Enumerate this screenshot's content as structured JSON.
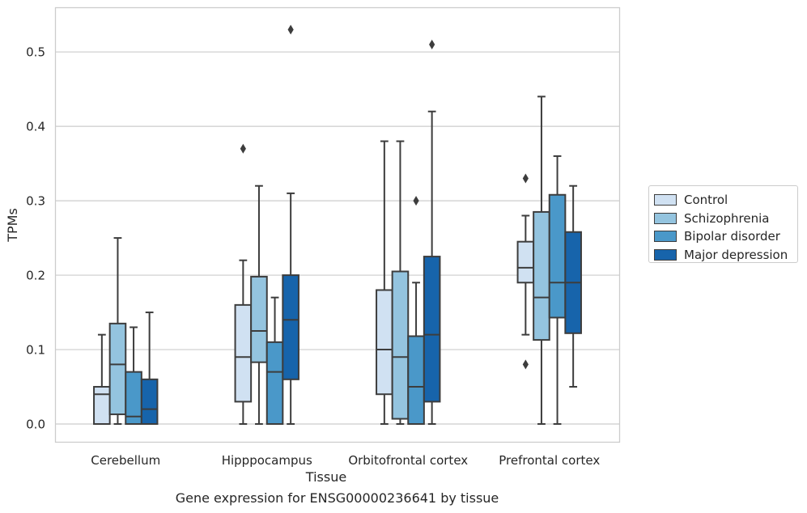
{
  "caption": "Gene expression for ENSG00000236641 by tissue",
  "chart_data": {
    "type": "boxplot",
    "xlabel": "Tissue",
    "ylabel": "TPMs",
    "ylim": [
      -0.025,
      0.56
    ],
    "yticks": [
      0.0,
      0.1,
      0.2,
      0.3,
      0.4,
      0.5
    ],
    "ytick_labels": [
      "0.0",
      "0.1",
      "0.2",
      "0.3",
      "0.4",
      "0.5"
    ],
    "grid": true,
    "legend_placement": "right, outside plot",
    "categories": [
      "Cerebellum",
      "Hipppocampus",
      "Orbitofrontal cortex",
      "Prefrontal cortex"
    ],
    "series": [
      {
        "name": "Control",
        "color": "#d0e1f2",
        "boxes": [
          {
            "whislo": 0.0,
            "q1": 0.0,
            "med": 0.04,
            "q3": 0.05,
            "whishi": 0.12,
            "fliers": []
          },
          {
            "whislo": 0.0,
            "q1": 0.03,
            "med": 0.09,
            "q3": 0.16,
            "whishi": 0.22,
            "fliers": [
              0.37
            ]
          },
          {
            "whislo": 0.0,
            "q1": 0.04,
            "med": 0.1,
            "q3": 0.18,
            "whishi": 0.38,
            "fliers": []
          },
          {
            "whislo": 0.12,
            "q1": 0.19,
            "med": 0.21,
            "q3": 0.245,
            "whishi": 0.28,
            "fliers": [
              0.33,
              0.08
            ]
          }
        ]
      },
      {
        "name": "Schizophrenia",
        "color": "#94c4df",
        "boxes": [
          {
            "whislo": 0.0,
            "q1": 0.013,
            "med": 0.08,
            "q3": 0.135,
            "whishi": 0.25,
            "fliers": []
          },
          {
            "whislo": 0.0,
            "q1": 0.083,
            "med": 0.125,
            "q3": 0.198,
            "whishi": 0.32,
            "fliers": []
          },
          {
            "whislo": 0.0,
            "q1": 0.007,
            "med": 0.09,
            "q3": 0.205,
            "whishi": 0.38,
            "fliers": []
          },
          {
            "whislo": 0.0,
            "q1": 0.113,
            "med": 0.17,
            "q3": 0.285,
            "whishi": 0.44,
            "fliers": []
          }
        ]
      },
      {
        "name": "Bipolar disorder",
        "color": "#4a98c9",
        "boxes": [
          {
            "whislo": 0.0,
            "q1": 0.0,
            "med": 0.01,
            "q3": 0.07,
            "whishi": 0.13,
            "fliers": []
          },
          {
            "whislo": 0.0,
            "q1": 0.0,
            "med": 0.07,
            "q3": 0.11,
            "whishi": 0.17,
            "fliers": []
          },
          {
            "whislo": 0.0,
            "q1": 0.0,
            "med": 0.05,
            "q3": 0.118,
            "whishi": 0.19,
            "fliers": [
              0.3
            ]
          },
          {
            "whislo": 0.0,
            "q1": 0.143,
            "med": 0.19,
            "q3": 0.308,
            "whishi": 0.36,
            "fliers": []
          }
        ]
      },
      {
        "name": "Major depression",
        "color": "#1764ab",
        "boxes": [
          {
            "whislo": 0.0,
            "q1": 0.0,
            "med": 0.02,
            "q3": 0.06,
            "whishi": 0.15,
            "fliers": []
          },
          {
            "whislo": 0.0,
            "q1": 0.06,
            "med": 0.14,
            "q3": 0.2,
            "whishi": 0.31,
            "fliers": [
              0.53
            ]
          },
          {
            "whislo": 0.0,
            "q1": 0.03,
            "med": 0.12,
            "q3": 0.225,
            "whishi": 0.42,
            "fliers": [
              0.51
            ]
          },
          {
            "whislo": 0.05,
            "q1": 0.122,
            "med": 0.19,
            "q3": 0.258,
            "whishi": 0.32,
            "fliers": []
          }
        ]
      }
    ]
  }
}
